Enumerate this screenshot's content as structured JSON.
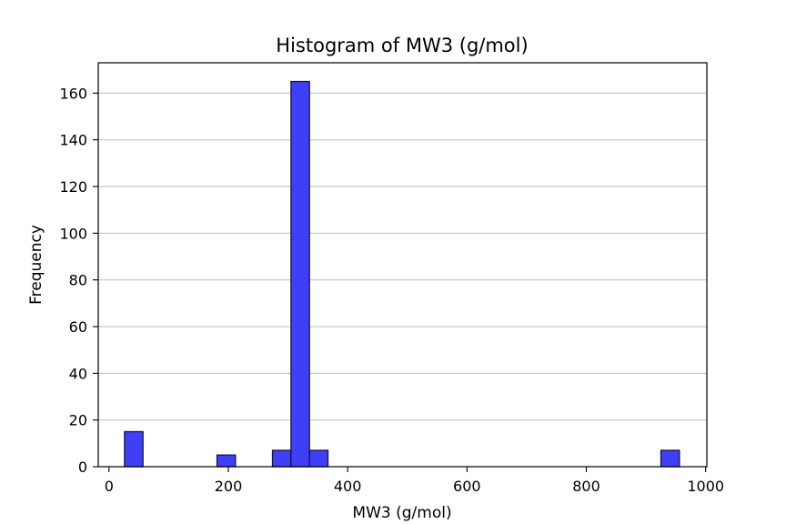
{
  "chart_data": {
    "type": "bar",
    "title": "Histogram of MW3 (g/mol)",
    "xlabel": "MW3 (g/mol)",
    "ylabel": "Frequency",
    "xlim": [
      -18,
      1002
    ],
    "ylim": [
      0,
      173
    ],
    "xticks": [
      0,
      200,
      400,
      600,
      800,
      1000
    ],
    "yticks": [
      0,
      20,
      40,
      60,
      80,
      100,
      120,
      140,
      160
    ],
    "grid": "y",
    "bin_width": 31,
    "bins": [
      {
        "x0": 26,
        "x1": 57,
        "value": 15
      },
      {
        "x0": 181,
        "x1": 212,
        "value": 5
      },
      {
        "x0": 274,
        "x1": 305,
        "value": 7
      },
      {
        "x0": 305,
        "x1": 336,
        "value": 165
      },
      {
        "x0": 336,
        "x1": 367,
        "value": 7
      },
      {
        "x0": 925,
        "x1": 956,
        "value": 7
      }
    ],
    "colors": {
      "bar_fill": "#3f3ff7",
      "bar_edge": "#15153b",
      "grid": "#c8c8c8",
      "axes": "#000000"
    }
  }
}
